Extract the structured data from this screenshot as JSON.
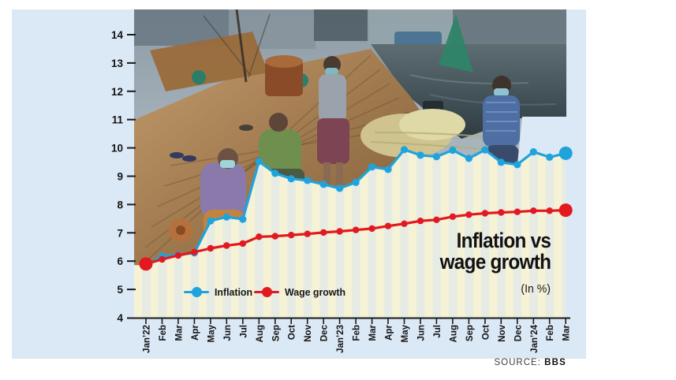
{
  "source": {
    "label": "SOURCE:",
    "value": "BBS"
  },
  "colors": {
    "card_background": "#dbe8f5",
    "inflation_line": "#1fa3dd",
    "wage_line": "#e2191f",
    "stripe_cream": "#f6f2d6",
    "stripe_alt": "#e6ebe4",
    "axis_text": "#1a1a1a"
  },
  "chart_data": {
    "type": "line",
    "title": "Inflation vs wage growth",
    "title_lines": [
      "Inflation vs",
      "wage growth"
    ],
    "unit_note": "(In %)",
    "categories": [
      "Jan’22",
      "Feb",
      "Mar",
      "Apr",
      "May",
      "Jun",
      "Jul",
      "Aug",
      "Sep",
      "Oct",
      "Nov",
      "Dec",
      "Jan’23",
      "Feb",
      "Mar",
      "Apr",
      "May",
      "Jun",
      "Jul",
      "Aug",
      "Sep",
      "Oct",
      "Nov",
      "Dec",
      "Jan’24",
      "Feb",
      "Mar"
    ],
    "series": [
      {
        "name": "Inflation",
        "color": "#1fa3dd",
        "values": [
          5.86,
          6.17,
          6.22,
          6.29,
          7.42,
          7.56,
          7.48,
          9.52,
          9.1,
          8.91,
          8.85,
          8.71,
          8.57,
          8.78,
          9.33,
          9.24,
          9.94,
          9.74,
          9.69,
          9.92,
          9.63,
          9.93,
          9.49,
          9.41,
          9.86,
          9.67,
          9.81
        ]
      },
      {
        "name": "Wage growth",
        "color": "#e2191f",
        "values": [
          5.9,
          6.06,
          6.2,
          6.32,
          6.45,
          6.55,
          6.62,
          6.86,
          6.88,
          6.92,
          6.96,
          7.01,
          7.05,
          7.1,
          7.15,
          7.24,
          7.32,
          7.42,
          7.46,
          7.57,
          7.64,
          7.69,
          7.72,
          7.74,
          7.78,
          7.78,
          7.8
        ]
      }
    ],
    "ylim": [
      4,
      14
    ],
    "yticks": [
      4,
      5,
      6,
      7,
      8,
      9,
      10,
      11,
      12,
      13,
      14
    ],
    "grid": false,
    "legend_position": "inside-bottom-left",
    "background_photo": "fishermen-mending-nets-on-boat"
  }
}
